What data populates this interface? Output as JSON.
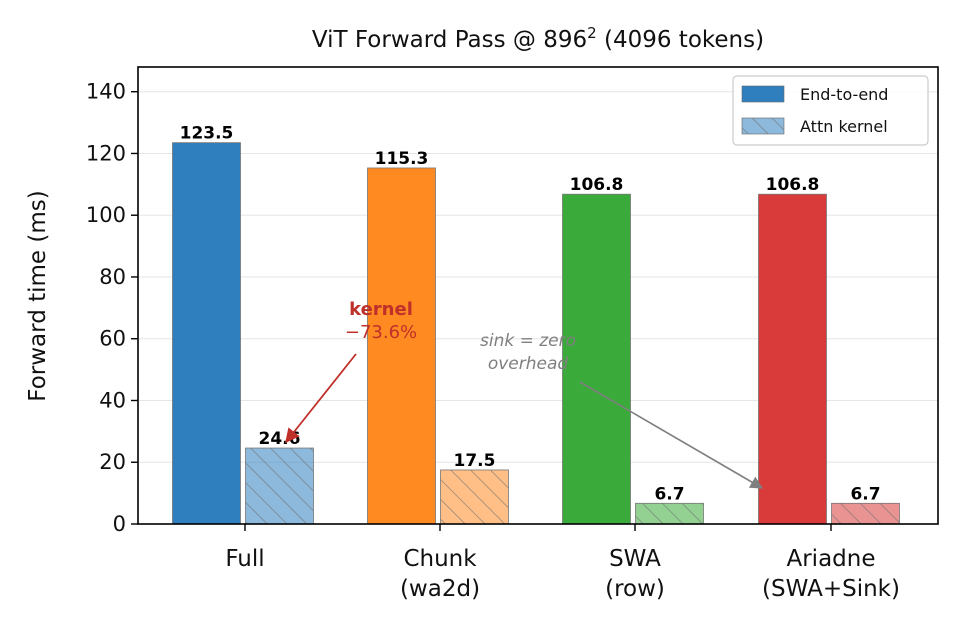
{
  "chart_data": {
    "type": "bar",
    "title_main": "ViT Forward Pass @ 896",
    "title_sup": "2",
    "title_rest": " (4096 tokens)",
    "xlabel": "",
    "ylabel": "Forward time (ms)",
    "ylim": [
      0,
      148
    ],
    "yticks": [
      0,
      20,
      40,
      60,
      80,
      100,
      120,
      140
    ],
    "grid": "y",
    "legend_position": "top-right",
    "categories": [
      {
        "line1": "Full",
        "line2": ""
      },
      {
        "line1": "Chunk",
        "line2": "(wa2d)"
      },
      {
        "line1": "SWA",
        "line2": "(row)"
      },
      {
        "line1": "Ariadne",
        "line2": "(SWA+Sink)"
      }
    ],
    "colors": [
      "#2f7fbf",
      "#ff8a22",
      "#3aab3a",
      "#d93a3a"
    ],
    "series": [
      {
        "name": "End-to-end",
        "values": [
          123.5,
          115.3,
          106.8,
          106.8
        ],
        "labels": [
          "123.5",
          "115.3",
          "106.8",
          "106.8"
        ]
      },
      {
        "name": "Attn kernel",
        "values": [
          24.6,
          17.5,
          6.7,
          6.7
        ],
        "labels": [
          "24.6",
          "17.5",
          "6.7",
          "6.7"
        ]
      }
    ],
    "annotations": [
      {
        "id": "kernel",
        "line1": "kernel",
        "line2": "−73.6%",
        "color": "#c0302a"
      },
      {
        "id": "sink",
        "line1": "sink = zero",
        "line2": "overhead",
        "color": "#7f7f7f"
      }
    ]
  }
}
